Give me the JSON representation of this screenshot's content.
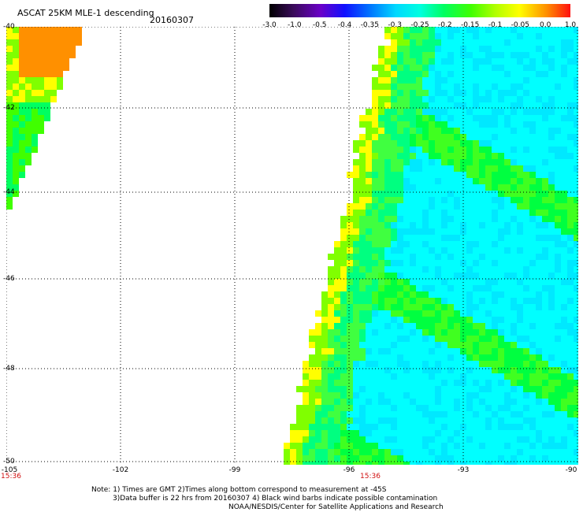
{
  "header": {
    "title": "ASCAT 25KM MLE-1 descending",
    "date": "20160307"
  },
  "colorbar": {
    "ticks": [
      "-3.0",
      "-1.0",
      "-0.5",
      "-0.4",
      "-0.35",
      "-0.3",
      "-0.25",
      "-0.2",
      "-0.15",
      "-0.1",
      "-0.05",
      "0.0",
      "1.0"
    ]
  },
  "axes": {
    "lat_labels": [
      "-40",
      "-42",
      "-44",
      "-46",
      "-48",
      "-50"
    ],
    "lon_labels": [
      "-105",
      "-102",
      "-99",
      "-96",
      "-93",
      "-90"
    ],
    "time_labels": [
      "15:36",
      "15:36"
    ]
  },
  "notes": {
    "line1": "Note: 1) Times are GMT 2)Times along bottom correspond to measurement at -45S",
    "line2": "3)Data buffer is 22 hrs from 20160307 4) Black wind barbs indicate possible contamination",
    "line3": "NOAA/NESDIS/Center for Satellite Applications and Research"
  },
  "colors": {
    "background": "#ffffff",
    "grid": "#000000",
    "time_label": "#d01010"
  }
}
